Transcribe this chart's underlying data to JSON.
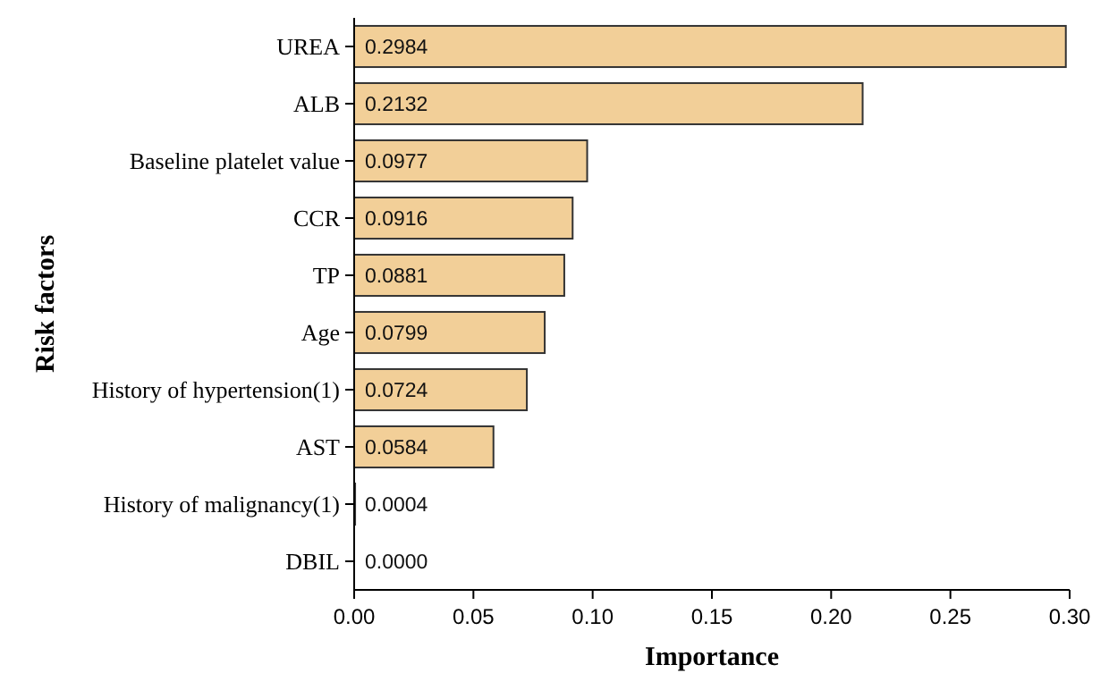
{
  "chart_data": {
    "type": "bar",
    "orientation": "horizontal",
    "xlabel": "Importance",
    "ylabel": "Risk factors",
    "categories": [
      "UREA",
      "ALB",
      "Baseline platelet value",
      "CCR",
      "TP",
      "Age",
      "History of hypertension(1)",
      "AST",
      "History of malignancy(1)",
      "DBIL"
    ],
    "values": [
      0.2984,
      0.2132,
      0.0977,
      0.0916,
      0.0881,
      0.0799,
      0.0724,
      0.0584,
      0.0004,
      0.0
    ],
    "value_labels": [
      "0.2984",
      "0.2132",
      "0.0977",
      "0.0916",
      "0.0881",
      "0.0799",
      "0.0724",
      "0.0584",
      "0.0004",
      "0.0000"
    ],
    "color": "#f2cf98",
    "xlim": [
      0,
      0.3
    ],
    "xticks": [
      {
        "value": 0,
        "label": "0.00"
      },
      {
        "value": 0.05,
        "label": "0.05"
      },
      {
        "value": 0.1,
        "label": "0.10"
      },
      {
        "value": 0.15,
        "label": "0.15"
      },
      {
        "value": 0.2,
        "label": "0.20"
      },
      {
        "value": 0.25,
        "label": "0.25"
      },
      {
        "value": 0.3,
        "label": "0.30"
      }
    ],
    "grid": false
  }
}
